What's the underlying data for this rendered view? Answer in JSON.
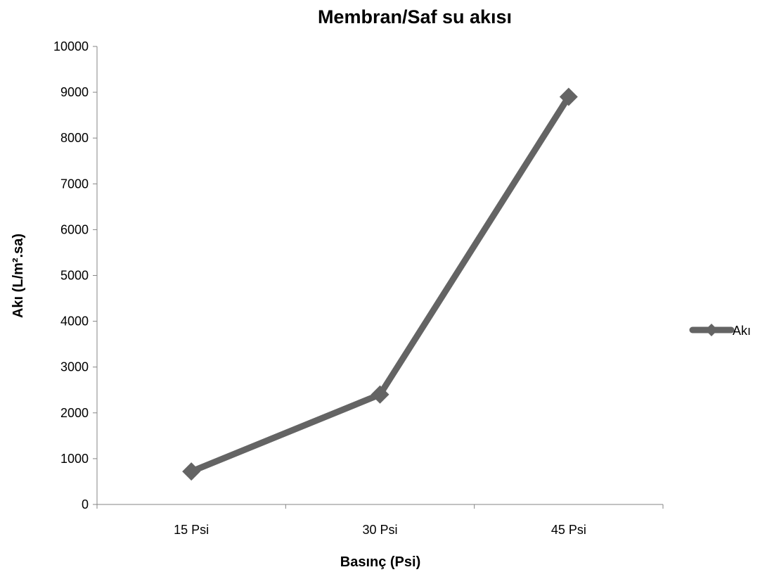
{
  "chart_data": {
    "type": "line",
    "title": "Membran/Saf su akısı",
    "xlabel": "Basınç (Psi)",
    "ylabel": "Akı (L/m².sa)",
    "categories": [
      "15 Psi",
      "30 Psi",
      "45 Psi"
    ],
    "series": [
      {
        "name": "Akı",
        "values": [
          720,
          2400,
          8900
        ],
        "color": "#646464",
        "marker": "diamond"
      }
    ],
    "ylim": [
      0,
      10000
    ],
    "yticks": [
      0,
      1000,
      2000,
      3000,
      4000,
      5000,
      6000,
      7000,
      8000,
      9000,
      10000
    ],
    "grid": false,
    "legend": "right"
  }
}
